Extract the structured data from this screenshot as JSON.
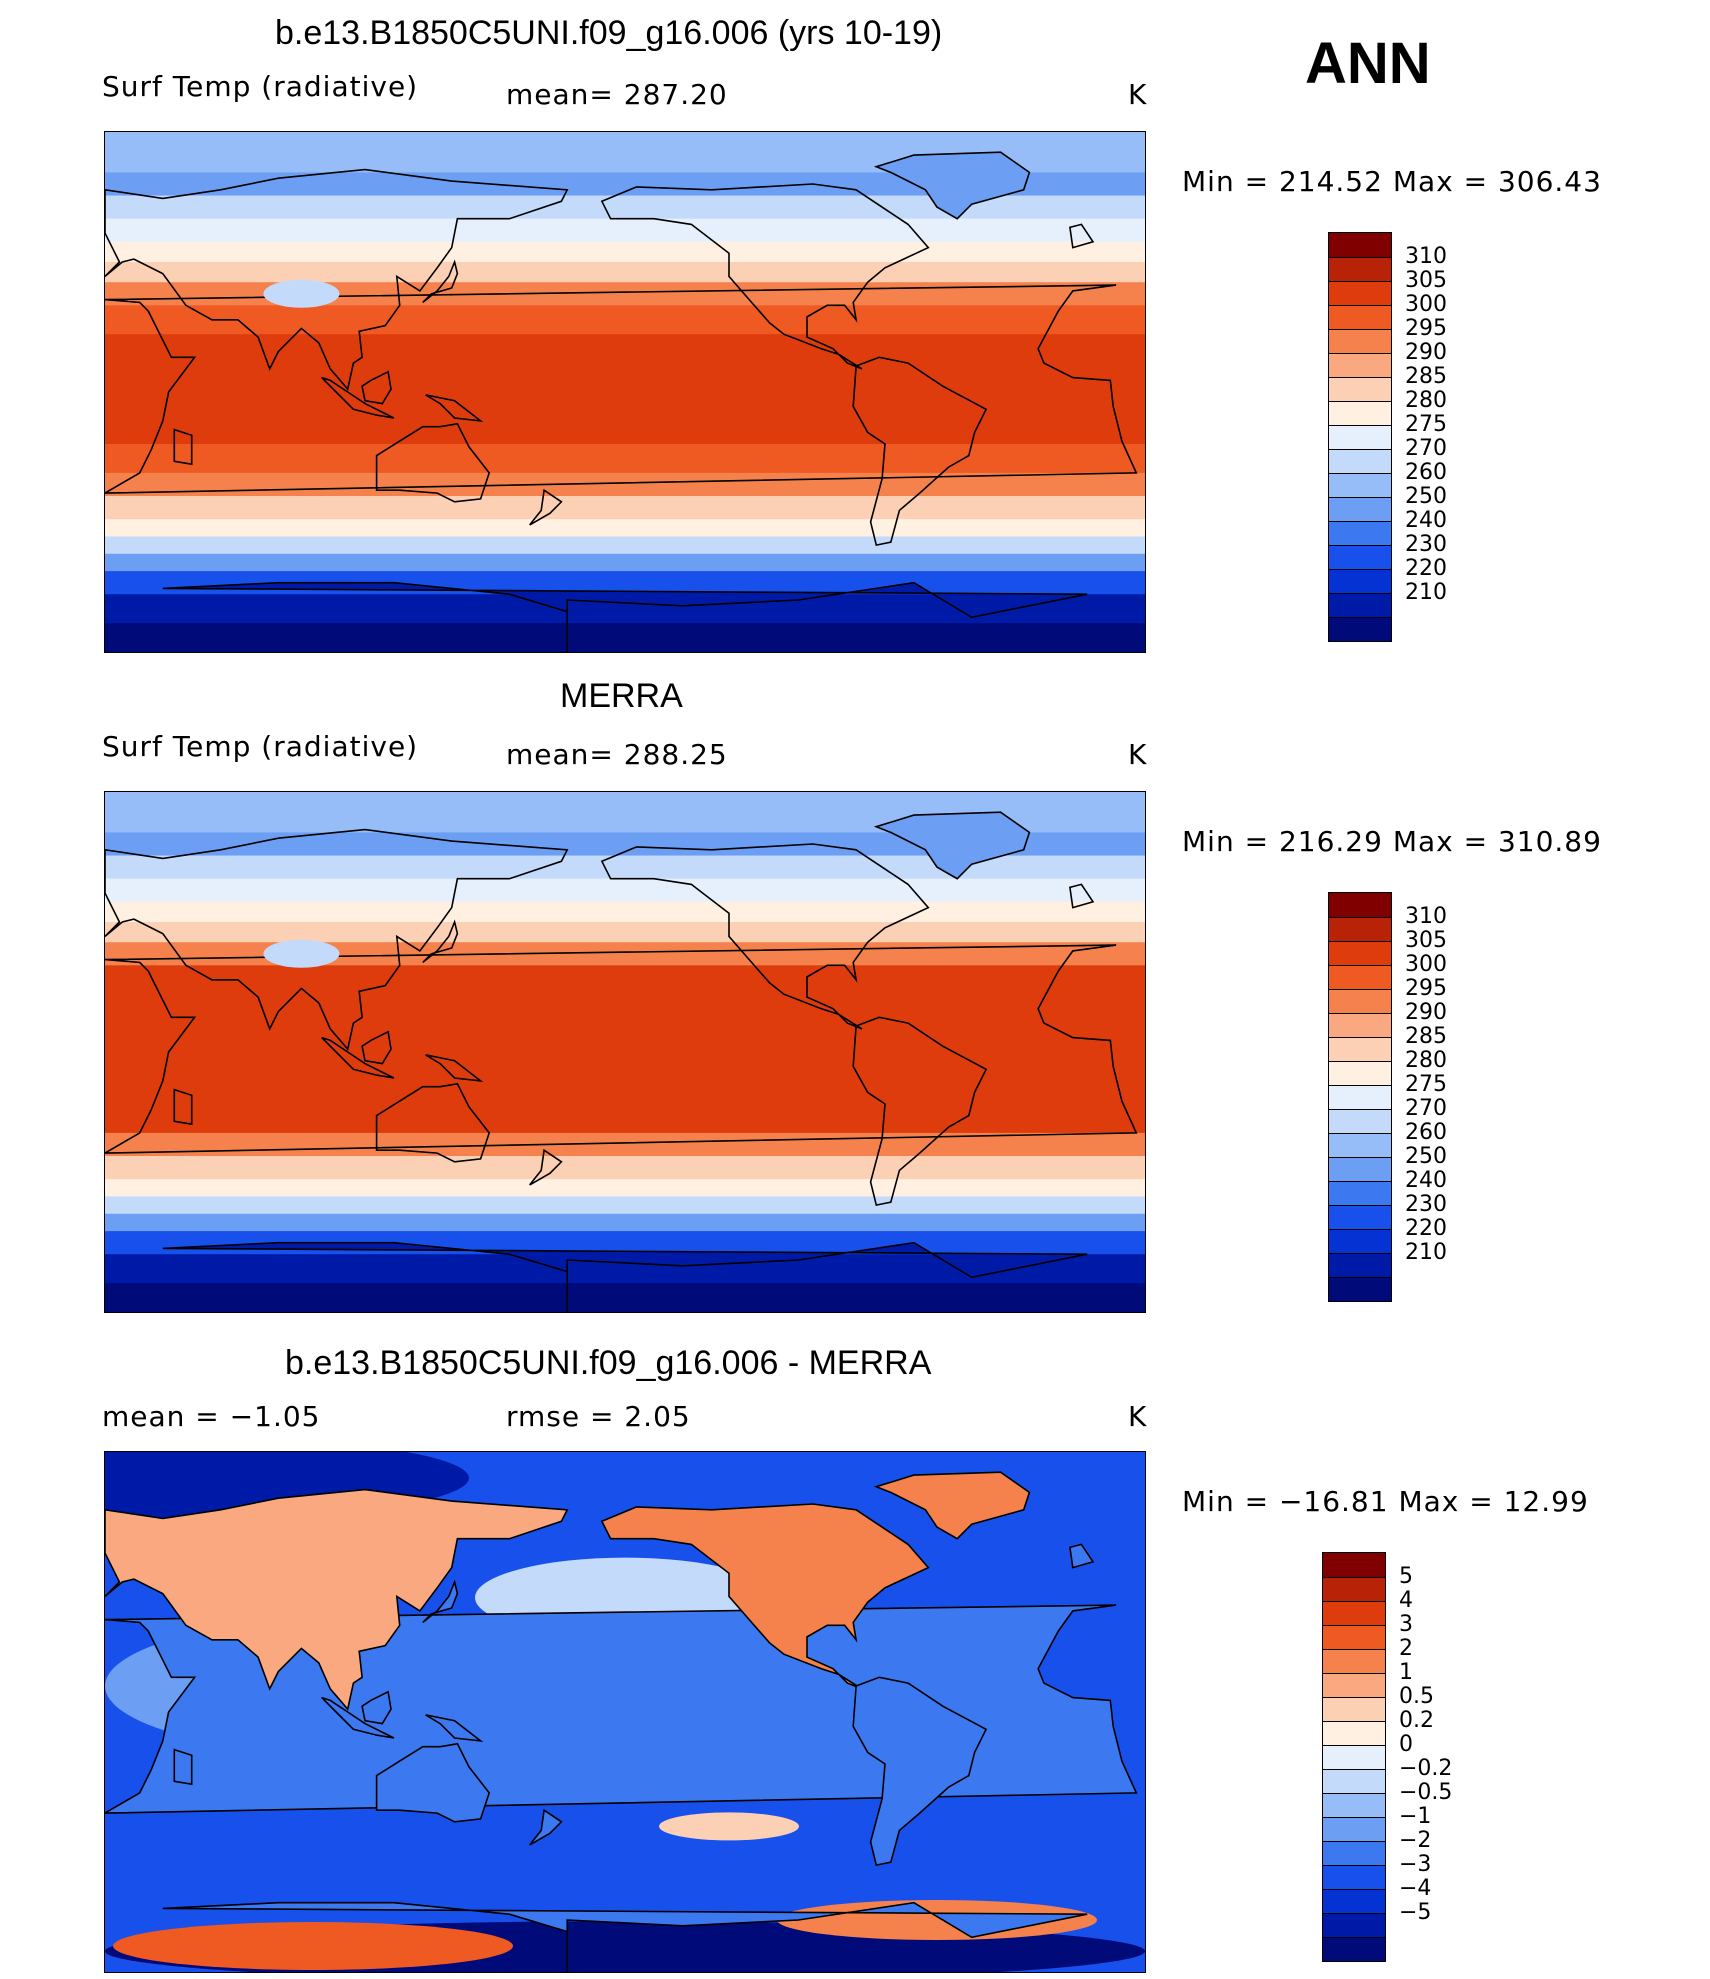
{
  "season": "ANN",
  "colors": {
    "temp_scale": [
      "#000a78",
      "#001aa8",
      "#0532d2",
      "#1850ec",
      "#3c78ef",
      "#6c9ff3",
      "#96bdf7",
      "#c4dafb",
      "#e6f0fd",
      "#fff0e2",
      "#fcd0b4",
      "#f9a880",
      "#f5814d",
      "#ee5a22",
      "#de3c0c",
      "#b82206",
      "#800000"
    ],
    "diff_scale": [
      "#000a78",
      "#001aa8",
      "#0532d2",
      "#1850ec",
      "#3c78ef",
      "#6c9ff3",
      "#96bdf7",
      "#c4dafb",
      "#e6f0fd",
      "#fff0e2",
      "#fcd0b4",
      "#f9a880",
      "#f5814d",
      "#ee5a22",
      "#de3c0c",
      "#b82206",
      "#800000"
    ]
  },
  "panels": [
    {
      "title": "b.e13.B1850C5UNI.f09_g16.006 (yrs 10-19)",
      "left_label": "Surf Temp (radiative)",
      "center_label": "mean= 287.20",
      "units": "K",
      "minmax": "Min = 214.52 Max = 306.43",
      "colorbar_levels": [
        "310",
        "305",
        "300",
        "295",
        "290",
        "285",
        "280",
        "275",
        "270",
        "260",
        "250",
        "240",
        "230",
        "220",
        "210"
      ],
      "field": "model"
    },
    {
      "title": "MERRA",
      "left_label": "Surf Temp (radiative)",
      "center_label": "mean= 288.25",
      "units": "K",
      "minmax": "Min = 216.29 Max = 310.89",
      "colorbar_levels": [
        "310",
        "305",
        "300",
        "295",
        "290",
        "285",
        "280",
        "275",
        "270",
        "260",
        "250",
        "240",
        "230",
        "220",
        "210"
      ],
      "field": "obs"
    },
    {
      "title": "b.e13.B1850C5UNI.f09_g16.006 - MERRA",
      "left_label": "mean =   −1.05",
      "center_label": "rmse =    2.05",
      "units": "K",
      "minmax": "Min = −16.81 Max =   12.99",
      "colorbar_levels": [
        "5",
        "4",
        "3",
        "2",
        "1",
        "0.5",
        "0.2",
        "0",
        "−0.2",
        "−0.5",
        "−1",
        "−2",
        "−3",
        "−4",
        "−5"
      ],
      "field": "diff"
    }
  ]
}
